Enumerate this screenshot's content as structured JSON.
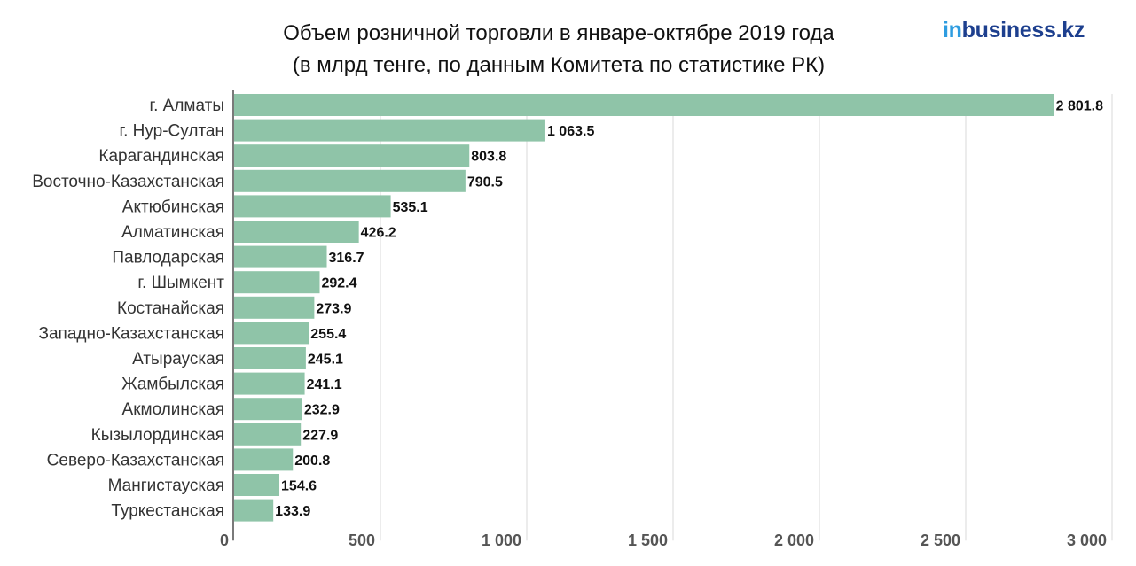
{
  "header": {
    "title_line1": "Объем розничной торговли в январе-октябре 2019 года",
    "title_line2": "(в млрд тенге, по данным Комитета по статистике РК)"
  },
  "logo": {
    "prefix": "in",
    "suffix": "business.kz"
  },
  "colors": {
    "bar": "#8fc4a8",
    "grid": "#e6e6e6",
    "axis": "#7a7a7a"
  },
  "chart_data": {
    "type": "bar",
    "orientation": "horizontal",
    "title": "Объем розничной торговли в январе-октябре 2019 года (в млрд тенге, по данным Комитета по статистике РК)",
    "categories": [
      "г. Алматы",
      "г. Нур-Султан",
      "Карагандинская",
      "Восточно-Казахстанская",
      "Актюбинская",
      "Алматинская",
      "Павлодарская",
      "г. Шымкент",
      "Костанайская",
      "Западно-Казахстанская",
      "Атырауская",
      "Жамбылская",
      "Акмолинская",
      "Кызылординская",
      "Северо-Казахстанская",
      "Мангистауская",
      "Туркестанская"
    ],
    "values": [
      2801.8,
      1063.5,
      803.8,
      790.5,
      535.1,
      426.2,
      316.7,
      292.4,
      273.9,
      255.4,
      245.1,
      241.1,
      232.9,
      227.9,
      200.8,
      154.6,
      133.9
    ],
    "value_labels": [
      "2 801.8",
      "1 063.5",
      "803.8",
      "790.5",
      "535.1",
      "426.2",
      "316.7",
      "292.4",
      "273.9",
      "255.4",
      "245.1",
      "241.1",
      "232.9",
      "227.9",
      "200.8",
      "154.6",
      "133.9"
    ],
    "xlim": [
      0,
      3000
    ],
    "xticks": [
      0,
      500,
      1000,
      1500,
      2000,
      2500,
      3000
    ],
    "xtick_labels": [
      "0",
      "500",
      "1 000",
      "1 500",
      "2 000",
      "2 500",
      "3 000"
    ],
    "grid": true,
    "legend": "none"
  }
}
